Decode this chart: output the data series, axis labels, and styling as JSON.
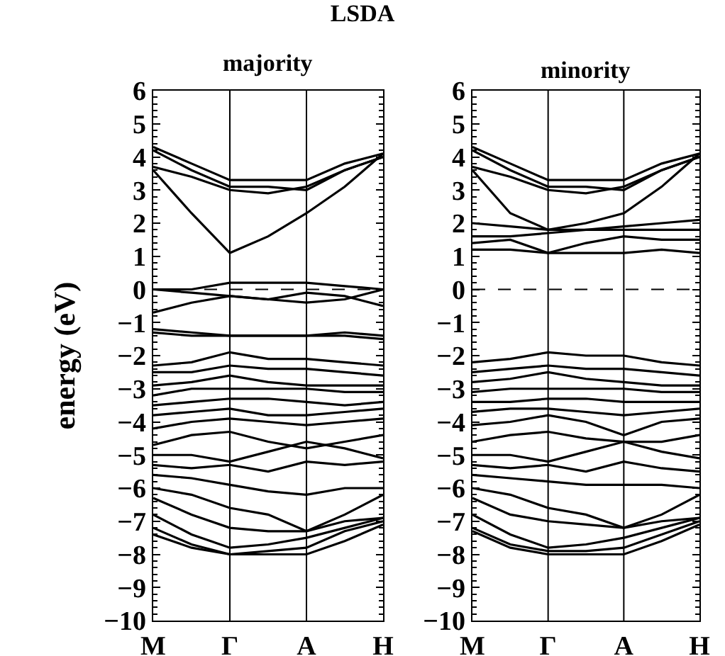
{
  "chart_data": [
    {
      "type": "line",
      "title": "LSDA",
      "subtitle": "majority",
      "ylabel": "energy (eV)",
      "ylim": [
        -10,
        6
      ],
      "yticks": [
        -10,
        -9,
        -8,
        -7,
        -6,
        -5,
        -4,
        -3,
        -2,
        -1,
        0,
        1,
        2,
        3,
        4,
        5,
        6
      ],
      "categories": [
        "M",
        null,
        "Γ",
        null,
        "A",
        null,
        "H"
      ],
      "grid": false,
      "marker": "none",
      "line_style": "solid",
      "ref_lines": [
        {
          "axis": "x",
          "value": "Γ",
          "color": "#000000",
          "line_style": "solid"
        },
        {
          "axis": "x",
          "value": "A",
          "color": "#000000",
          "line_style": "solid"
        },
        {
          "axis": "y",
          "value": 0,
          "color": "#000000",
          "line_style": "dashed"
        }
      ],
      "series": [
        {
          "color": "#000000",
          "values": [
            4.3,
            3.8,
            3.3,
            3.3,
            3.3,
            3.8,
            4.1
          ]
        },
        {
          "color": "#000000",
          "values": [
            4.2,
            3.6,
            3.1,
            3.1,
            3.0,
            3.6,
            4.0
          ]
        },
        {
          "color": "#000000",
          "values": [
            3.7,
            3.4,
            3.0,
            2.9,
            3.1,
            3.6,
            4.0
          ]
        },
        {
          "color": "#000000",
          "values": [
            3.6,
            2.3,
            1.1,
            1.6,
            2.3,
            3.1,
            4.1
          ]
        },
        {
          "color": "#000000",
          "values": [
            0.0,
            0.0,
            0.2,
            0.2,
            0.2,
            0.1,
            0.0
          ]
        },
        {
          "color": "#000000",
          "values": [
            0.0,
            -0.1,
            -0.2,
            -0.3,
            -0.1,
            -0.2,
            -0.5
          ]
        },
        {
          "color": "#000000",
          "values": [
            -0.7,
            -0.4,
            -0.2,
            -0.3,
            -0.4,
            -0.3,
            0.0
          ]
        },
        {
          "color": "#000000",
          "values": [
            -1.3,
            -1.4,
            -1.4,
            -1.4,
            -1.4,
            -1.4,
            -1.5
          ]
        },
        {
          "color": "#000000",
          "values": [
            -1.2,
            -1.3,
            -1.4,
            -1.4,
            -1.4,
            -1.3,
            -1.4
          ]
        },
        {
          "color": "#000000",
          "values": [
            -2.3,
            -2.2,
            -1.9,
            -2.1,
            -2.1,
            -2.2,
            -2.3
          ]
        },
        {
          "color": "#000000",
          "values": [
            -2.5,
            -2.5,
            -2.3,
            -2.4,
            -2.4,
            -2.5,
            -2.6
          ]
        },
        {
          "color": "#000000",
          "values": [
            -2.9,
            -2.8,
            -2.6,
            -2.8,
            -2.9,
            -2.9,
            -2.9
          ]
        },
        {
          "color": "#000000",
          "values": [
            -3.2,
            -3.0,
            -3.0,
            -3.0,
            -3.0,
            -3.1,
            -3.1
          ]
        },
        {
          "color": "#000000",
          "values": [
            -3.5,
            -3.4,
            -3.3,
            -3.3,
            -3.4,
            -3.5,
            -3.4
          ]
        },
        {
          "color": "#000000",
          "values": [
            -3.8,
            -3.7,
            -3.6,
            -3.8,
            -3.8,
            -3.7,
            -3.6
          ]
        },
        {
          "color": "#000000",
          "values": [
            -4.2,
            -4.0,
            -3.9,
            -4.0,
            -4.1,
            -4.0,
            -3.9
          ]
        },
        {
          "color": "#000000",
          "values": [
            -4.7,
            -4.4,
            -4.3,
            -4.6,
            -4.8,
            -4.6,
            -4.4
          ]
        },
        {
          "color": "#000000",
          "values": [
            -5.0,
            -5.0,
            -5.2,
            -4.9,
            -4.6,
            -4.8,
            -5.1
          ]
        },
        {
          "color": "#000000",
          "values": [
            -5.3,
            -5.4,
            -5.3,
            -5.5,
            -5.2,
            -5.3,
            -5.2
          ]
        },
        {
          "color": "#000000",
          "values": [
            -5.6,
            -5.7,
            -5.9,
            -6.1,
            -6.2,
            -6.0,
            -6.0
          ]
        },
        {
          "color": "#000000",
          "values": [
            -6.0,
            -6.2,
            -6.6,
            -6.8,
            -7.3,
            -6.8,
            -6.2
          ]
        },
        {
          "color": "#000000",
          "values": [
            -6.3,
            -6.8,
            -7.2,
            -7.3,
            -7.3,
            -7.0,
            -6.9
          ]
        },
        {
          "color": "#000000",
          "values": [
            -6.8,
            -7.4,
            -7.8,
            -7.7,
            -7.5,
            -7.2,
            -6.9
          ]
        },
        {
          "color": "#000000",
          "values": [
            -7.2,
            -7.7,
            -8.0,
            -7.9,
            -7.8,
            -7.3,
            -7.0
          ]
        },
        {
          "color": "#000000",
          "values": [
            -7.4,
            -7.8,
            -8.0,
            -8.0,
            -8.0,
            -7.6,
            -7.1
          ]
        }
      ]
    },
    {
      "type": "line",
      "subtitle": "minority",
      "ylim": [
        -10,
        6
      ],
      "yticks": [
        -10,
        -9,
        -8,
        -7,
        -6,
        -5,
        -4,
        -3,
        -2,
        -1,
        0,
        1,
        2,
        3,
        4,
        5,
        6
      ],
      "categories": [
        "M",
        null,
        "Γ",
        null,
        "A",
        null,
        "H"
      ],
      "grid": false,
      "marker": "none",
      "line_style": "solid",
      "ref_lines": [
        {
          "axis": "x",
          "value": "Γ",
          "color": "#000000",
          "line_style": "solid"
        },
        {
          "axis": "x",
          "value": "A",
          "color": "#000000",
          "line_style": "solid"
        },
        {
          "axis": "y",
          "value": 0,
          "color": "#000000",
          "line_style": "dashed"
        }
      ],
      "series": [
        {
          "color": "#000000",
          "values": [
            4.3,
            3.8,
            3.3,
            3.3,
            3.3,
            3.8,
            4.1
          ]
        },
        {
          "color": "#000000",
          "values": [
            4.2,
            3.6,
            3.1,
            3.1,
            3.0,
            3.6,
            4.0
          ]
        },
        {
          "color": "#000000",
          "values": [
            3.7,
            3.4,
            3.0,
            2.9,
            3.1,
            3.6,
            4.0
          ]
        },
        {
          "color": "#000000",
          "values": [
            3.6,
            2.3,
            1.8,
            2.0,
            2.3,
            3.1,
            4.1
          ]
        },
        {
          "color": "#000000",
          "values": [
            2.0,
            1.9,
            1.8,
            1.8,
            1.9,
            2.0,
            2.1
          ]
        },
        {
          "color": "#000000",
          "values": [
            1.6,
            1.6,
            1.7,
            1.8,
            1.8,
            1.8,
            1.8
          ]
        },
        {
          "color": "#000000",
          "values": [
            1.4,
            1.5,
            1.1,
            1.4,
            1.6,
            1.5,
            1.5
          ]
        },
        {
          "color": "#000000",
          "values": [
            1.2,
            1.2,
            1.1,
            1.1,
            1.1,
            1.2,
            1.1
          ]
        },
        {
          "color": "#000000",
          "values": [
            -2.2,
            -2.1,
            -1.9,
            -2.0,
            -2.0,
            -2.2,
            -2.3
          ]
        },
        {
          "color": "#000000",
          "values": [
            -2.5,
            -2.4,
            -2.3,
            -2.4,
            -2.4,
            -2.5,
            -2.6
          ]
        },
        {
          "color": "#000000",
          "values": [
            -2.8,
            -2.7,
            -2.5,
            -2.7,
            -2.8,
            -2.9,
            -2.9
          ]
        },
        {
          "color": "#000000",
          "values": [
            -3.1,
            -3.0,
            -3.0,
            -3.0,
            -3.0,
            -3.1,
            -3.1
          ]
        },
        {
          "color": "#000000",
          "values": [
            -3.4,
            -3.4,
            -3.3,
            -3.3,
            -3.4,
            -3.4,
            -3.4
          ]
        },
        {
          "color": "#000000",
          "values": [
            -3.7,
            -3.6,
            -3.6,
            -3.7,
            -3.8,
            -3.7,
            -3.6
          ]
        },
        {
          "color": "#000000",
          "values": [
            -4.1,
            -4.0,
            -3.8,
            -4.0,
            -4.4,
            -4.0,
            -3.9
          ]
        },
        {
          "color": "#000000",
          "values": [
            -4.6,
            -4.4,
            -4.3,
            -4.5,
            -4.6,
            -4.6,
            -4.4
          ]
        },
        {
          "color": "#000000",
          "values": [
            -5.0,
            -5.0,
            -5.2,
            -4.9,
            -4.6,
            -4.9,
            -5.1
          ]
        },
        {
          "color": "#000000",
          "values": [
            -5.3,
            -5.4,
            -5.3,
            -5.5,
            -5.2,
            -5.4,
            -5.5
          ]
        },
        {
          "color": "#000000",
          "values": [
            -5.6,
            -5.7,
            -5.8,
            -5.9,
            -5.9,
            -5.9,
            -6.0
          ]
        },
        {
          "color": "#000000",
          "values": [
            -6.0,
            -6.2,
            -6.6,
            -6.8,
            -7.2,
            -6.8,
            -6.2
          ]
        },
        {
          "color": "#000000",
          "values": [
            -6.3,
            -6.8,
            -7.0,
            -7.1,
            -7.2,
            -7.0,
            -6.9
          ]
        },
        {
          "color": "#000000",
          "values": [
            -6.8,
            -7.4,
            -7.8,
            -7.7,
            -7.5,
            -7.2,
            -6.9
          ]
        },
        {
          "color": "#000000",
          "values": [
            -7.2,
            -7.7,
            -7.9,
            -7.9,
            -7.8,
            -7.4,
            -7.0
          ]
        },
        {
          "color": "#000000",
          "values": [
            -7.3,
            -7.8,
            -8.0,
            -8.0,
            -8.0,
            -7.6,
            -7.1
          ]
        }
      ]
    }
  ]
}
